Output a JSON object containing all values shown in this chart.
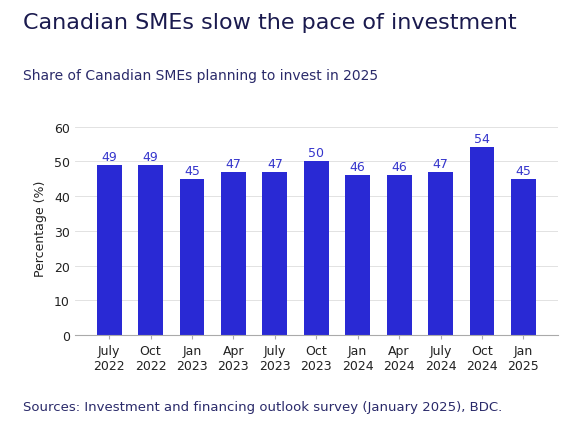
{
  "title": "Canadian SMEs slow the pace of investment",
  "subtitle": "Share of Canadian SMEs planning to invest in 2025",
  "source": "Sources: Investment and financing outlook survey (January 2025), BDC.",
  "categories": [
    [
      "July",
      "2022"
    ],
    [
      "Oct",
      "2022"
    ],
    [
      "Jan",
      "2023"
    ],
    [
      "Apr",
      "2023"
    ],
    [
      "July",
      "2023"
    ],
    [
      "Oct",
      "2023"
    ],
    [
      "Jan",
      "2024"
    ],
    [
      "Apr",
      "2024"
    ],
    [
      "July",
      "2024"
    ],
    [
      "Oct",
      "2024"
    ],
    [
      "Jan",
      "2025"
    ]
  ],
  "values": [
    49,
    49,
    45,
    47,
    47,
    50,
    46,
    46,
    47,
    54,
    45
  ],
  "bar_color": "#2929d4",
  "label_color": "#3535cc",
  "title_color": "#1a1a4e",
  "subtitle_color": "#2a2a6a",
  "source_color": "#2a2a6a",
  "ylabel": "Percentage (%)",
  "ylim": [
    0,
    62
  ],
  "yticks": [
    0,
    10,
    20,
    30,
    40,
    50,
    60
  ],
  "title_fontsize": 16,
  "subtitle_fontsize": 10,
  "source_fontsize": 9.5,
  "ylabel_fontsize": 9,
  "tick_label_fontsize": 9,
  "value_label_fontsize": 9,
  "background_color": "#ffffff"
}
